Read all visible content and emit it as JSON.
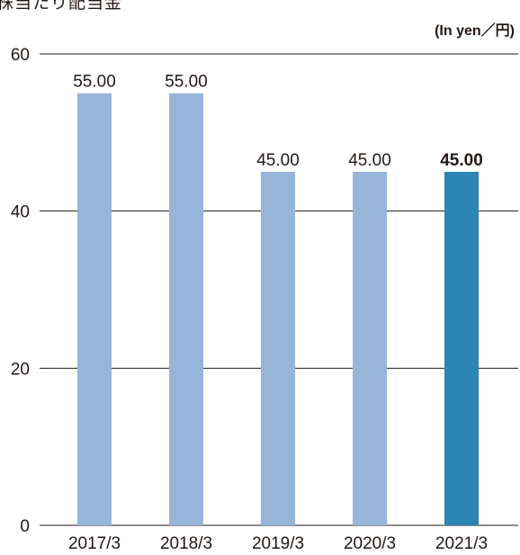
{
  "title": "株当たり配当金",
  "unit_label": "(In yen／円)",
  "colors": {
    "bar": "#97b5d9",
    "highlight": "#2c86b4",
    "grid": "#231815"
  },
  "chart_data": {
    "type": "bar",
    "title": "株当たり配当金",
    "xlabel": "",
    "ylabel": "",
    "unit": "(In yen／円)",
    "categories": [
      "2017/3",
      "2018/3",
      "2019/3",
      "2020/3",
      "2021/3"
    ],
    "values": [
      55.0,
      55.0,
      45.0,
      45.0,
      45.0
    ],
    "data_labels": [
      "55.00",
      "55.00",
      "45.00",
      "45.00",
      "45.00"
    ],
    "highlight_index": 4,
    "ylim": [
      0,
      60
    ],
    "yticks": [
      0,
      20,
      40,
      60
    ],
    "grid": true,
    "legend": "none"
  }
}
